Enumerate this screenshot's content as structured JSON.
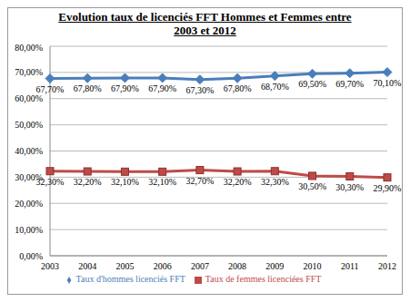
{
  "chart_data": {
    "type": "line",
    "title": "Evolution taux de licenciés FFT Hommes et Femmes entre 2003 et 2012",
    "categories": [
      "2003",
      "2004",
      "2005",
      "2006",
      "2007",
      "2008",
      "2009",
      "2010",
      "2011",
      "2012"
    ],
    "series": [
      {
        "name": "Taux d'hommes licenciés FFT",
        "color": "#4a7ebb",
        "marker": "diamond",
        "values": [
          67.7,
          67.8,
          67.9,
          67.9,
          67.3,
          67.8,
          68.7,
          69.5,
          69.7,
          70.1
        ],
        "value_labels": [
          "67,70%",
          "67,80%",
          "67,90%",
          "67,90%",
          "67,30%",
          "67,80%",
          "68,70%",
          "69,50%",
          "69,70%",
          "70,10%"
        ]
      },
      {
        "name": "Taux de femmes licenciées FFT",
        "color": "#be4b48",
        "marker": "square",
        "values": [
          32.3,
          32.2,
          32.1,
          32.1,
          32.7,
          32.2,
          32.3,
          30.5,
          30.3,
          29.9
        ],
        "value_labels": [
          "32,30%",
          "32,20%",
          "32,10%",
          "32,10%",
          "32,70%",
          "32,20%",
          "32,30%",
          "30,50%",
          "30,30%",
          "29,90%"
        ]
      }
    ],
    "ylim": [
      0,
      80
    ],
    "yticks": [
      {
        "value": 0,
        "label": "0,00%"
      },
      {
        "value": 10,
        "label": "10,00%"
      },
      {
        "value": 20,
        "label": "20,00%"
      },
      {
        "value": 30,
        "label": "30,00%"
      },
      {
        "value": 40,
        "label": "40,00%"
      },
      {
        "value": 50,
        "label": "50,00%"
      },
      {
        "value": 60,
        "label": "60,00%"
      },
      {
        "value": 70,
        "label": "70,00%"
      },
      {
        "value": 80,
        "label": "80,00%"
      }
    ],
    "grid": true,
    "legend": "bottom",
    "data_labels": true
  }
}
